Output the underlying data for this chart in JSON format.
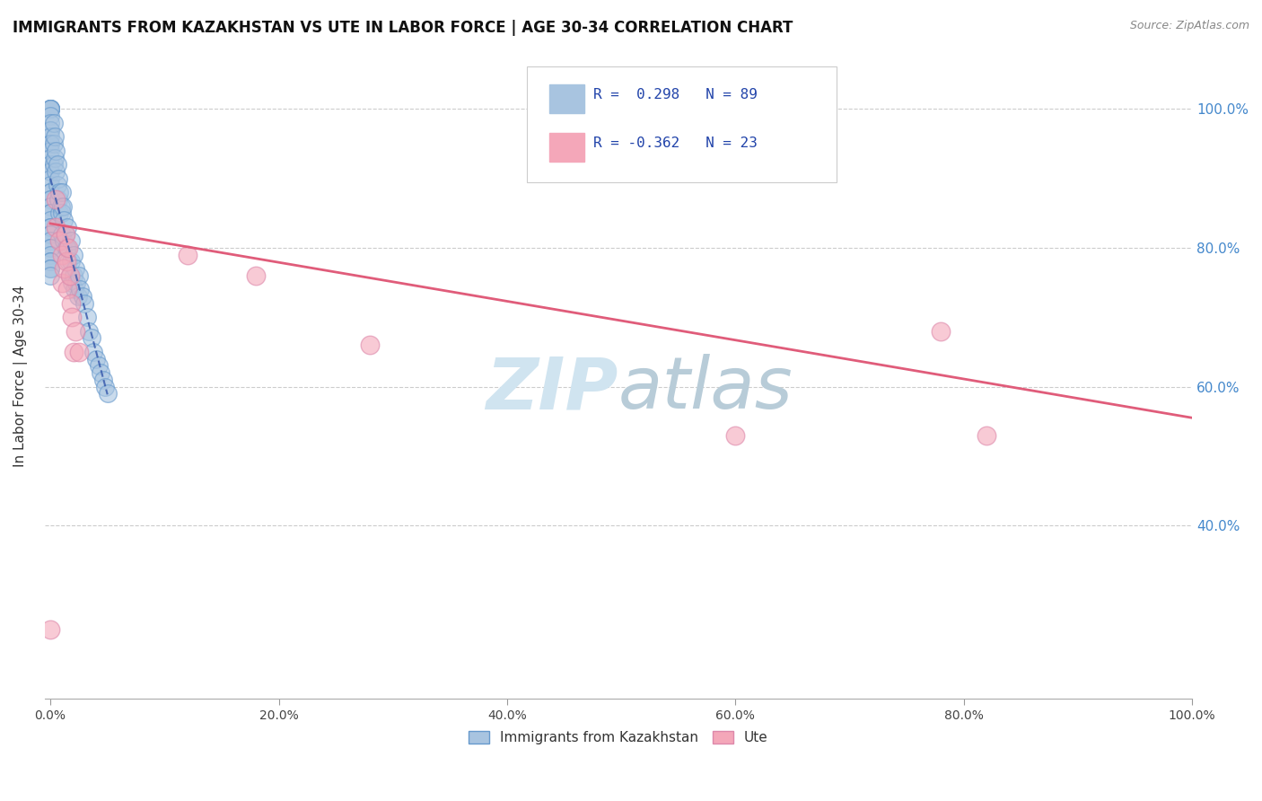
{
  "title": "IMMIGRANTS FROM KAZAKHSTAN VS UTE IN LABOR FORCE | AGE 30-34 CORRELATION CHART",
  "source": "Source: ZipAtlas.com",
  "ylabel": "In Labor Force | Age 30-34",
  "x_tick_positions": [
    0.0,
    0.2,
    0.4,
    0.6,
    0.8,
    1.0
  ],
  "x_tick_labels": [
    "0.0%",
    "20.0%",
    "40.0%",
    "60.0%",
    "80.0%",
    "100.0%"
  ],
  "y_tick_positions": [
    0.4,
    0.6,
    0.8,
    1.0
  ],
  "y_right_tick_labels": [
    "40.0%",
    "60.0%",
    "80.0%",
    "100.0%"
  ],
  "xlim": [
    -0.005,
    1.0
  ],
  "ylim": [
    0.15,
    1.08
  ],
  "kaz_color": "#a8c4e0",
  "kaz_edge_color": "#6699cc",
  "ute_color": "#f4a7b9",
  "ute_edge_color": "#dd88aa",
  "kaz_line_color": "#3355aa",
  "ute_line_color": "#e05c7a",
  "legend_text_color": "#2244aa",
  "watermark_color": "#d0e4f0",
  "legend_label1": "Immigrants from Kazakhstan",
  "legend_label2": "Ute",
  "kaz_x": [
    0.0,
    0.0,
    0.0,
    0.0,
    0.0,
    0.0,
    0.0,
    0.0,
    0.0,
    0.0,
    0.0,
    0.0,
    0.0,
    0.0,
    0.0,
    0.0,
    0.0,
    0.0,
    0.0,
    0.0,
    0.0,
    0.0,
    0.0,
    0.0,
    0.0,
    0.0,
    0.0,
    0.0,
    0.0,
    0.0,
    0.0,
    0.0,
    0.0,
    0.0,
    0.0,
    0.0,
    0.0,
    0.0,
    0.0,
    0.0,
    0.003,
    0.003,
    0.003,
    0.004,
    0.004,
    0.005,
    0.005,
    0.006,
    0.006,
    0.007,
    0.007,
    0.008,
    0.008,
    0.009,
    0.01,
    0.01,
    0.01,
    0.011,
    0.012,
    0.012,
    0.013,
    0.014,
    0.015,
    0.015,
    0.016,
    0.017,
    0.018,
    0.018,
    0.019,
    0.02,
    0.02,
    0.021,
    0.022,
    0.023,
    0.024,
    0.025,
    0.026,
    0.028,
    0.03,
    0.032,
    0.034,
    0.036,
    0.038,
    0.04,
    0.042,
    0.044,
    0.046,
    0.048,
    0.05
  ],
  "kaz_y": [
    1.0,
    1.0,
    1.0,
    1.0,
    1.0,
    0.99,
    0.98,
    0.97,
    0.97,
    0.96,
    0.95,
    0.95,
    0.94,
    0.93,
    0.92,
    0.91,
    0.91,
    0.9,
    0.89,
    0.88,
    0.88,
    0.87,
    0.87,
    0.86,
    0.85,
    0.85,
    0.84,
    0.83,
    0.83,
    0.82,
    0.82,
    0.81,
    0.8,
    0.8,
    0.79,
    0.78,
    0.78,
    0.77,
    0.77,
    0.76,
    0.98,
    0.95,
    0.92,
    0.96,
    0.93,
    0.94,
    0.91,
    0.92,
    0.89,
    0.9,
    0.87,
    0.88,
    0.85,
    0.86,
    0.88,
    0.85,
    0.82,
    0.86,
    0.84,
    0.81,
    0.82,
    0.8,
    0.83,
    0.8,
    0.78,
    0.76,
    0.81,
    0.78,
    0.75,
    0.79,
    0.76,
    0.74,
    0.77,
    0.75,
    0.73,
    0.76,
    0.74,
    0.73,
    0.72,
    0.7,
    0.68,
    0.67,
    0.65,
    0.64,
    0.63,
    0.62,
    0.61,
    0.6,
    0.59
  ],
  "ute_x": [
    0.0,
    0.005,
    0.005,
    0.008,
    0.01,
    0.01,
    0.012,
    0.013,
    0.014,
    0.015,
    0.016,
    0.017,
    0.018,
    0.019,
    0.02,
    0.022,
    0.025,
    0.12,
    0.18,
    0.28,
    0.6,
    0.78,
    0.82
  ],
  "ute_y": [
    0.25,
    0.87,
    0.83,
    0.81,
    0.79,
    0.75,
    0.77,
    0.82,
    0.78,
    0.74,
    0.8,
    0.76,
    0.72,
    0.7,
    0.65,
    0.68,
    0.65,
    0.79,
    0.76,
    0.66,
    0.53,
    0.68,
    0.53
  ],
  "ute_trendline_start_y": 0.835,
  "ute_trendline_end_y": 0.555
}
